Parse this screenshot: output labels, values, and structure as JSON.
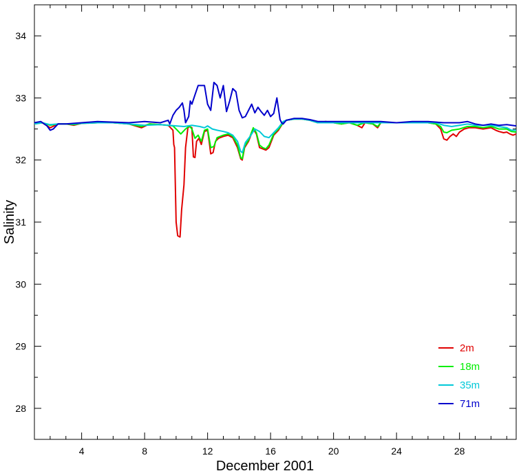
{
  "chart_data": {
    "type": "line",
    "title": "",
    "xlabel": "December 2001",
    "ylabel": "Salinity",
    "xlim": [
      1,
      31.6
    ],
    "ylim": [
      27.5,
      34.5
    ],
    "x_ticks": [
      4,
      8,
      12,
      16,
      20,
      24,
      28
    ],
    "y_ticks": [
      28,
      29,
      30,
      31,
      32,
      33,
      34
    ],
    "grid": false,
    "legend_position": "bottom-right",
    "series": [
      {
        "name": "2m",
        "color": "#e00000",
        "points": [
          [
            1,
            32.58
          ],
          [
            1.5,
            32.6
          ],
          [
            2,
            32.52
          ],
          [
            2.5,
            32.58
          ],
          [
            3,
            32.58
          ],
          [
            3.5,
            32.56
          ],
          [
            4,
            32.59
          ],
          [
            5,
            32.6
          ],
          [
            6,
            32.6
          ],
          [
            7,
            32.58
          ],
          [
            7.8,
            32.52
          ],
          [
            8.3,
            32.58
          ],
          [
            9,
            32.57
          ],
          [
            9.5,
            32.56
          ],
          [
            9.8,
            32.48
          ],
          [
            9.85,
            32.25
          ],
          [
            9.9,
            32.2
          ],
          [
            10.0,
            31.0
          ],
          [
            10.1,
            30.78
          ],
          [
            10.25,
            30.76
          ],
          [
            10.35,
            31.2
          ],
          [
            10.5,
            31.6
          ],
          [
            10.6,
            32.2
          ],
          [
            10.75,
            32.52
          ],
          [
            10.85,
            32.54
          ],
          [
            11.0,
            32.52
          ],
          [
            11.1,
            32.05
          ],
          [
            11.2,
            32.04
          ],
          [
            11.3,
            32.3
          ],
          [
            11.45,
            32.35
          ],
          [
            11.6,
            32.25
          ],
          [
            11.8,
            32.46
          ],
          [
            12.0,
            32.48
          ],
          [
            12.1,
            32.3
          ],
          [
            12.2,
            32.1
          ],
          [
            12.35,
            32.12
          ],
          [
            12.5,
            32.3
          ],
          [
            12.7,
            32.35
          ],
          [
            13.0,
            32.38
          ],
          [
            13.3,
            32.4
          ],
          [
            13.6,
            32.36
          ],
          [
            13.9,
            32.2
          ],
          [
            14.1,
            32.02
          ],
          [
            14.2,
            32.0
          ],
          [
            14.35,
            32.2
          ],
          [
            14.6,
            32.3
          ],
          [
            14.9,
            32.5
          ],
          [
            15.1,
            32.42
          ],
          [
            15.3,
            32.2
          ],
          [
            15.5,
            32.18
          ],
          [
            15.7,
            32.16
          ],
          [
            15.9,
            32.2
          ],
          [
            16.2,
            32.4
          ],
          [
            16.5,
            32.48
          ],
          [
            16.8,
            32.6
          ],
          [
            17,
            32.64
          ],
          [
            17.5,
            32.66
          ],
          [
            18,
            32.66
          ],
          [
            18.5,
            32.64
          ],
          [
            19,
            32.6
          ],
          [
            19.5,
            32.62
          ],
          [
            20,
            32.6
          ],
          [
            20.5,
            32.58
          ],
          [
            21,
            32.6
          ],
          [
            21.5,
            32.56
          ],
          [
            21.8,
            32.52
          ],
          [
            22,
            32.6
          ],
          [
            22.5,
            32.58
          ],
          [
            22.8,
            32.52
          ],
          [
            23,
            32.6
          ],
          [
            24,
            32.6
          ],
          [
            25,
            32.6
          ],
          [
            26,
            32.6
          ],
          [
            26.5,
            32.58
          ],
          [
            26.8,
            32.5
          ],
          [
            27,
            32.34
          ],
          [
            27.2,
            32.32
          ],
          [
            27.4,
            32.38
          ],
          [
            27.6,
            32.42
          ],
          [
            27.8,
            32.38
          ],
          [
            28,
            32.45
          ],
          [
            28.3,
            32.5
          ],
          [
            28.6,
            32.52
          ],
          [
            29,
            32.52
          ],
          [
            29.5,
            32.5
          ],
          [
            30,
            32.52
          ],
          [
            30.3,
            32.48
          ],
          [
            30.5,
            32.46
          ],
          [
            30.8,
            32.44
          ],
          [
            31,
            32.45
          ],
          [
            31.2,
            32.42
          ],
          [
            31.4,
            32.4
          ],
          [
            31.6,
            32.42
          ]
        ]
      },
      {
        "name": "18m",
        "color": "#00ee00",
        "points": [
          [
            1,
            32.58
          ],
          [
            1.5,
            32.6
          ],
          [
            2,
            32.56
          ],
          [
            2.5,
            32.58
          ],
          [
            3,
            32.58
          ],
          [
            3.5,
            32.57
          ],
          [
            4,
            32.59
          ],
          [
            5,
            32.6
          ],
          [
            6,
            32.6
          ],
          [
            7,
            32.58
          ],
          [
            7.8,
            32.54
          ],
          [
            8.3,
            32.58
          ],
          [
            9,
            32.57
          ],
          [
            9.5,
            32.56
          ],
          [
            9.8,
            32.55
          ],
          [
            10.0,
            32.5
          ],
          [
            10.3,
            32.42
          ],
          [
            10.6,
            32.5
          ],
          [
            10.85,
            32.55
          ],
          [
            11.0,
            32.5
          ],
          [
            11.2,
            32.35
          ],
          [
            11.4,
            32.4
          ],
          [
            11.6,
            32.3
          ],
          [
            11.8,
            32.48
          ],
          [
            12.0,
            32.5
          ],
          [
            12.2,
            32.2
          ],
          [
            12.4,
            32.22
          ],
          [
            12.6,
            32.36
          ],
          [
            13.0,
            32.4
          ],
          [
            13.3,
            32.42
          ],
          [
            13.6,
            32.38
          ],
          [
            13.9,
            32.24
          ],
          [
            14.1,
            32.04
          ],
          [
            14.2,
            32.02
          ],
          [
            14.35,
            32.22
          ],
          [
            14.6,
            32.32
          ],
          [
            14.9,
            32.52
          ],
          [
            15.1,
            32.44
          ],
          [
            15.3,
            32.24
          ],
          [
            15.5,
            32.2
          ],
          [
            15.7,
            32.18
          ],
          [
            15.9,
            32.24
          ],
          [
            16.2,
            32.42
          ],
          [
            16.5,
            32.5
          ],
          [
            16.8,
            32.6
          ],
          [
            17,
            32.64
          ],
          [
            17.5,
            32.66
          ],
          [
            18,
            32.66
          ],
          [
            18.5,
            32.64
          ],
          [
            19,
            32.6
          ],
          [
            19.5,
            32.62
          ],
          [
            20,
            32.6
          ],
          [
            20.5,
            32.58
          ],
          [
            21,
            32.6
          ],
          [
            21.5,
            32.56
          ],
          [
            22,
            32.6
          ],
          [
            22.5,
            32.58
          ],
          [
            22.8,
            32.54
          ],
          [
            23,
            32.6
          ],
          [
            24,
            32.6
          ],
          [
            25,
            32.6
          ],
          [
            26,
            32.6
          ],
          [
            26.5,
            32.58
          ],
          [
            26.8,
            32.54
          ],
          [
            27,
            32.45
          ],
          [
            27.2,
            32.44
          ],
          [
            27.5,
            32.48
          ],
          [
            28,
            32.5
          ],
          [
            28.5,
            32.54
          ],
          [
            29,
            32.54
          ],
          [
            29.5,
            32.52
          ],
          [
            30,
            32.54
          ],
          [
            30.5,
            32.5
          ],
          [
            31,
            32.5
          ],
          [
            31.3,
            32.46
          ],
          [
            31.6,
            32.45
          ]
        ]
      },
      {
        "name": "35m",
        "color": "#00c8d8",
        "points": [
          [
            1,
            32.58
          ],
          [
            1.5,
            32.6
          ],
          [
            2,
            32.57
          ],
          [
            2.5,
            32.58
          ],
          [
            3,
            32.58
          ],
          [
            3.5,
            32.58
          ],
          [
            4,
            32.59
          ],
          [
            5,
            32.6
          ],
          [
            6,
            32.6
          ],
          [
            7,
            32.58
          ],
          [
            8,
            32.56
          ],
          [
            9,
            32.57
          ],
          [
            9.5,
            32.56
          ],
          [
            10.0,
            32.55
          ],
          [
            10.5,
            32.54
          ],
          [
            11.0,
            32.56
          ],
          [
            11.5,
            32.54
          ],
          [
            11.8,
            32.52
          ],
          [
            12.0,
            32.55
          ],
          [
            12.3,
            32.5
          ],
          [
            12.6,
            32.48
          ],
          [
            13.0,
            32.46
          ],
          [
            13.3,
            32.44
          ],
          [
            13.6,
            32.4
          ],
          [
            13.9,
            32.3
          ],
          [
            14.1,
            32.14
          ],
          [
            14.2,
            32.12
          ],
          [
            14.4,
            32.28
          ],
          [
            14.7,
            32.38
          ],
          [
            15.0,
            32.5
          ],
          [
            15.3,
            32.46
          ],
          [
            15.6,
            32.38
          ],
          [
            15.9,
            32.36
          ],
          [
            16.2,
            32.44
          ],
          [
            16.5,
            32.52
          ],
          [
            16.8,
            32.62
          ],
          [
            17,
            32.64
          ],
          [
            17.5,
            32.66
          ],
          [
            18,
            32.66
          ],
          [
            18.5,
            32.64
          ],
          [
            19,
            32.6
          ],
          [
            20,
            32.6
          ],
          [
            21,
            32.6
          ],
          [
            22,
            32.6
          ],
          [
            23,
            32.6
          ],
          [
            24,
            32.6
          ],
          [
            25,
            32.6
          ],
          [
            26,
            32.6
          ],
          [
            26.5,
            32.6
          ],
          [
            27,
            32.56
          ],
          [
            27.5,
            32.54
          ],
          [
            28,
            32.56
          ],
          [
            28.5,
            32.58
          ],
          [
            29,
            32.56
          ],
          [
            29.5,
            32.56
          ],
          [
            30,
            32.56
          ],
          [
            30.5,
            32.54
          ],
          [
            31,
            32.52
          ],
          [
            31.3,
            32.48
          ],
          [
            31.6,
            32.48
          ]
        ]
      },
      {
        "name": "71m",
        "color": "#0000cc",
        "points": [
          [
            1,
            32.6
          ],
          [
            1.4,
            32.62
          ],
          [
            1.8,
            32.55
          ],
          [
            2.0,
            32.48
          ],
          [
            2.2,
            32.5
          ],
          [
            2.5,
            32.58
          ],
          [
            3,
            32.58
          ],
          [
            3.5,
            32.59
          ],
          [
            4,
            32.6
          ],
          [
            5,
            32.62
          ],
          [
            6,
            32.61
          ],
          [
            7,
            32.6
          ],
          [
            8,
            32.62
          ],
          [
            9,
            32.6
          ],
          [
            9.5,
            32.64
          ],
          [
            9.6,
            32.58
          ],
          [
            9.8,
            32.72
          ],
          [
            10.0,
            32.8
          ],
          [
            10.2,
            32.85
          ],
          [
            10.4,
            32.92
          ],
          [
            10.5,
            32.8
          ],
          [
            10.6,
            32.6
          ],
          [
            10.8,
            32.7
          ],
          [
            10.9,
            32.95
          ],
          [
            11.0,
            32.9
          ],
          [
            11.2,
            33.05
          ],
          [
            11.4,
            33.2
          ],
          [
            11.6,
            33.2
          ],
          [
            11.8,
            33.2
          ],
          [
            12.0,
            32.9
          ],
          [
            12.2,
            32.8
          ],
          [
            12.4,
            33.25
          ],
          [
            12.6,
            33.2
          ],
          [
            12.8,
            33.0
          ],
          [
            13.0,
            33.2
          ],
          [
            13.2,
            32.78
          ],
          [
            13.4,
            32.95
          ],
          [
            13.6,
            33.15
          ],
          [
            13.8,
            33.1
          ],
          [
            14.0,
            32.8
          ],
          [
            14.2,
            32.68
          ],
          [
            14.4,
            32.7
          ],
          [
            14.6,
            32.8
          ],
          [
            14.8,
            32.9
          ],
          [
            15.0,
            32.76
          ],
          [
            15.2,
            32.85
          ],
          [
            15.4,
            32.78
          ],
          [
            15.6,
            32.72
          ],
          [
            15.8,
            32.8
          ],
          [
            16.0,
            32.7
          ],
          [
            16.2,
            32.75
          ],
          [
            16.4,
            33.0
          ],
          [
            16.6,
            32.65
          ],
          [
            16.7,
            32.6
          ],
          [
            16.8,
            32.58
          ],
          [
            17,
            32.64
          ],
          [
            17.5,
            32.67
          ],
          [
            18,
            32.67
          ],
          [
            18.5,
            32.65
          ],
          [
            19,
            32.62
          ],
          [
            20,
            32.62
          ],
          [
            21,
            32.62
          ],
          [
            22,
            32.62
          ],
          [
            23,
            32.62
          ],
          [
            24,
            32.6
          ],
          [
            25,
            32.62
          ],
          [
            26,
            32.62
          ],
          [
            27,
            32.6
          ],
          [
            28,
            32.6
          ],
          [
            28.5,
            32.62
          ],
          [
            29,
            32.58
          ],
          [
            29.5,
            32.56
          ],
          [
            30,
            32.58
          ],
          [
            30.5,
            32.56
          ],
          [
            31,
            32.57
          ],
          [
            31.6,
            32.55
          ]
        ]
      }
    ]
  }
}
